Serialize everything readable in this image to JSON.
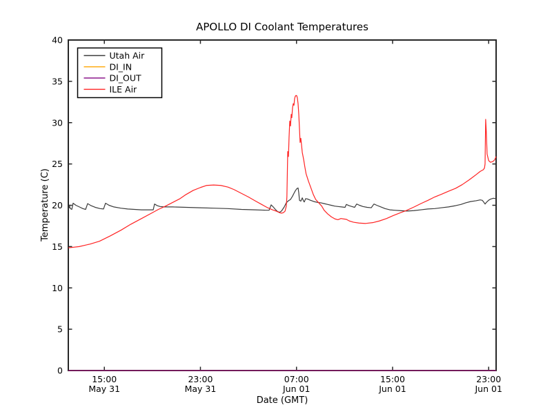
{
  "figure": {
    "title": "APOLLO DI Coolant Temperatures",
    "xlabel": "Date (GMT)",
    "ylabel": "Temperature (C)"
  },
  "chart_data": {
    "type": "line",
    "title": "APOLLO DI Coolant Temperatures",
    "xlabel": "Date (GMT)",
    "ylabel": "Temperature (C)",
    "grid": false,
    "legend_position": "upper left",
    "ylim": [
      0,
      40
    ],
    "yticks": [
      0,
      5,
      10,
      15,
      20,
      25,
      30,
      35,
      40
    ],
    "x_range_hours": [
      0,
      35.62
    ],
    "xticks": [
      {
        "t": 3,
        "time": "15:00",
        "date": "May 31"
      },
      {
        "t": 11,
        "time": "23:00",
        "date": "May 31"
      },
      {
        "t": 19,
        "time": "07:00",
        "date": "Jun 01"
      },
      {
        "t": 27,
        "time": "15:00",
        "date": "Jun 01"
      },
      {
        "t": 35,
        "time": "23:00",
        "date": "Jun 01"
      }
    ],
    "series": [
      {
        "name": "Utah Air",
        "color": "#3a3a3a",
        "points": [
          [
            0,
            19.5
          ],
          [
            0.11,
            19.9
          ],
          [
            0.17,
            19.6
          ],
          [
            0.29,
            19.5
          ],
          [
            0.4,
            20.25
          ],
          [
            0.63,
            20.0
          ],
          [
            0.92,
            19.8
          ],
          [
            1.21,
            19.6
          ],
          [
            1.44,
            19.5
          ],
          [
            1.61,
            20.2
          ],
          [
            1.9,
            19.95
          ],
          [
            2.24,
            19.75
          ],
          [
            2.64,
            19.6
          ],
          [
            2.93,
            19.55
          ],
          [
            3.1,
            20.25
          ],
          [
            3.39,
            20.0
          ],
          [
            3.79,
            19.8
          ],
          [
            4.37,
            19.65
          ],
          [
            4.94,
            19.55
          ],
          [
            5.52,
            19.5
          ],
          [
            6.09,
            19.45
          ],
          [
            7.07,
            19.45
          ],
          [
            7.18,
            20.15
          ],
          [
            7.41,
            19.95
          ],
          [
            7.64,
            19.85
          ],
          [
            7.99,
            19.8
          ],
          [
            8.68,
            19.8
          ],
          [
            9.82,
            19.75
          ],
          [
            10.97,
            19.7
          ],
          [
            12.12,
            19.65
          ],
          [
            13.27,
            19.6
          ],
          [
            14.42,
            19.5
          ],
          [
            15.57,
            19.45
          ],
          [
            16.43,
            19.4
          ],
          [
            16.72,
            19.4
          ],
          [
            16.89,
            20.05
          ],
          [
            17.06,
            19.8
          ],
          [
            17.24,
            19.5
          ],
          [
            17.41,
            19.25
          ],
          [
            17.58,
            19.15
          ],
          [
            17.75,
            19.3
          ],
          [
            17.98,
            19.8
          ],
          [
            18.15,
            20.3
          ],
          [
            18.33,
            20.55
          ],
          [
            18.5,
            20.7
          ],
          [
            18.67,
            21.1
          ],
          [
            18.79,
            21.45
          ],
          [
            18.9,
            21.75
          ],
          [
            19.02,
            22.0
          ],
          [
            19.13,
            22.1
          ],
          [
            19.19,
            21.5
          ],
          [
            19.25,
            20.6
          ],
          [
            19.36,
            20.5
          ],
          [
            19.48,
            20.9
          ],
          [
            19.59,
            20.5
          ],
          [
            19.65,
            20.4
          ],
          [
            19.76,
            20.8
          ],
          [
            19.94,
            20.75
          ],
          [
            20.17,
            20.6
          ],
          [
            20.45,
            20.45
          ],
          [
            20.74,
            20.35
          ],
          [
            21.03,
            20.3
          ],
          [
            21.31,
            20.2
          ],
          [
            21.6,
            20.1
          ],
          [
            21.89,
            20.0
          ],
          [
            22.18,
            19.9
          ],
          [
            22.46,
            19.85
          ],
          [
            22.75,
            19.8
          ],
          [
            23.04,
            19.75
          ],
          [
            23.15,
            20.1
          ],
          [
            23.38,
            19.95
          ],
          [
            23.61,
            19.85
          ],
          [
            23.84,
            19.75
          ],
          [
            24.01,
            20.15
          ],
          [
            24.24,
            20.0
          ],
          [
            24.53,
            19.85
          ],
          [
            24.88,
            19.75
          ],
          [
            25.22,
            19.7
          ],
          [
            25.45,
            20.15
          ],
          [
            25.68,
            20.0
          ],
          [
            26.03,
            19.8
          ],
          [
            26.37,
            19.6
          ],
          [
            26.77,
            19.45
          ],
          [
            27.17,
            19.4
          ],
          [
            27.63,
            19.35
          ],
          [
            28.21,
            19.3
          ],
          [
            28.78,
            19.35
          ],
          [
            29.36,
            19.45
          ],
          [
            29.93,
            19.55
          ],
          [
            30.51,
            19.6
          ],
          [
            31.08,
            19.7
          ],
          [
            31.66,
            19.8
          ],
          [
            32.23,
            19.95
          ],
          [
            32.69,
            20.1
          ],
          [
            33.09,
            20.3
          ],
          [
            33.49,
            20.45
          ],
          [
            33.95,
            20.55
          ],
          [
            34.3,
            20.65
          ],
          [
            34.47,
            20.6
          ],
          [
            34.58,
            20.4
          ],
          [
            34.7,
            20.15
          ],
          [
            34.81,
            20.35
          ],
          [
            34.99,
            20.6
          ],
          [
            35.16,
            20.75
          ],
          [
            35.39,
            20.85
          ],
          [
            35.62,
            20.8
          ]
        ]
      },
      {
        "name": "DI_IN",
        "color": "#ffa500",
        "points": [
          [
            0,
            0
          ],
          [
            35.62,
            0
          ]
        ]
      },
      {
        "name": "DI_OUT",
        "color": "#800080",
        "points": [
          [
            0,
            0
          ],
          [
            35.62,
            0
          ]
        ]
      },
      {
        "name": "ILE Air",
        "color": "#ff2222",
        "points": [
          [
            0,
            14.85
          ],
          [
            0.9,
            15.0
          ],
          [
            1.8,
            15.3
          ],
          [
            2.6,
            15.65
          ],
          [
            3.5,
            16.3
          ],
          [
            4.4,
            17.0
          ],
          [
            5.2,
            17.7
          ],
          [
            6.1,
            18.4
          ],
          [
            7.0,
            19.1
          ],
          [
            7.5,
            19.5
          ],
          [
            8.1,
            19.9
          ],
          [
            8.7,
            20.35
          ],
          [
            9.3,
            20.8
          ],
          [
            9.8,
            21.3
          ],
          [
            10.4,
            21.8
          ],
          [
            11.0,
            22.15
          ],
          [
            11.5,
            22.4
          ],
          [
            12.1,
            22.45
          ],
          [
            12.7,
            22.4
          ],
          [
            13.3,
            22.2
          ],
          [
            13.8,
            21.9
          ],
          [
            14.4,
            21.45
          ],
          [
            15.0,
            21.0
          ],
          [
            15.6,
            20.5
          ],
          [
            16.1,
            20.1
          ],
          [
            16.6,
            19.7
          ],
          [
            17.0,
            19.45
          ],
          [
            17.3,
            19.3
          ],
          [
            17.6,
            19.1
          ],
          [
            17.75,
            19.05
          ],
          [
            17.9,
            19.1
          ],
          [
            18.05,
            19.3
          ],
          [
            18.15,
            19.9
          ],
          [
            18.2,
            21.0
          ],
          [
            18.27,
            26.5
          ],
          [
            18.33,
            25.9
          ],
          [
            18.38,
            28.2
          ],
          [
            18.44,
            30.2
          ],
          [
            18.5,
            29.6
          ],
          [
            18.56,
            31.0
          ],
          [
            18.61,
            30.6
          ],
          [
            18.67,
            31.8
          ],
          [
            18.73,
            32.3
          ],
          [
            18.79,
            32.1
          ],
          [
            18.84,
            32.9
          ],
          [
            18.9,
            33.2
          ],
          [
            18.96,
            33.3
          ],
          [
            19.02,
            33.25
          ],
          [
            19.07,
            33.0
          ],
          [
            19.13,
            32.3
          ],
          [
            19.19,
            31.0
          ],
          [
            19.25,
            29.2
          ],
          [
            19.3,
            27.6
          ],
          [
            19.36,
            28.1
          ],
          [
            19.42,
            27.3
          ],
          [
            19.48,
            26.4
          ],
          [
            19.6,
            25.5
          ],
          [
            19.7,
            24.6
          ],
          [
            19.8,
            23.8
          ],
          [
            20.0,
            22.9
          ],
          [
            20.2,
            22.1
          ],
          [
            20.4,
            21.3
          ],
          [
            20.6,
            20.7
          ],
          [
            20.85,
            20.3
          ],
          [
            21.1,
            19.9
          ],
          [
            21.3,
            19.4
          ],
          [
            21.6,
            18.95
          ],
          [
            21.9,
            18.6
          ],
          [
            22.2,
            18.35
          ],
          [
            22.45,
            18.25
          ],
          [
            22.7,
            18.4
          ],
          [
            22.9,
            18.35
          ],
          [
            23.15,
            18.3
          ],
          [
            23.4,
            18.1
          ],
          [
            23.75,
            17.95
          ],
          [
            24.2,
            17.85
          ],
          [
            24.75,
            17.8
          ],
          [
            25.35,
            17.9
          ],
          [
            25.9,
            18.1
          ],
          [
            26.5,
            18.4
          ],
          [
            27.05,
            18.75
          ],
          [
            27.65,
            19.1
          ],
          [
            28.2,
            19.4
          ],
          [
            28.8,
            19.8
          ],
          [
            29.35,
            20.2
          ],
          [
            29.95,
            20.6
          ],
          [
            30.5,
            21.0
          ],
          [
            31.1,
            21.35
          ],
          [
            31.65,
            21.7
          ],
          [
            32.25,
            22.05
          ],
          [
            32.8,
            22.5
          ],
          [
            33.4,
            23.1
          ],
          [
            33.95,
            23.7
          ],
          [
            34.3,
            24.1
          ],
          [
            34.55,
            24.3
          ],
          [
            34.65,
            24.5
          ],
          [
            34.7,
            25.0
          ],
          [
            34.75,
            30.4
          ],
          [
            34.8,
            29.0
          ],
          [
            34.87,
            26.2
          ],
          [
            35.0,
            25.4
          ],
          [
            35.15,
            25.2
          ],
          [
            35.35,
            25.3
          ],
          [
            35.5,
            25.5
          ],
          [
            35.62,
            25.9
          ]
        ]
      }
    ]
  }
}
